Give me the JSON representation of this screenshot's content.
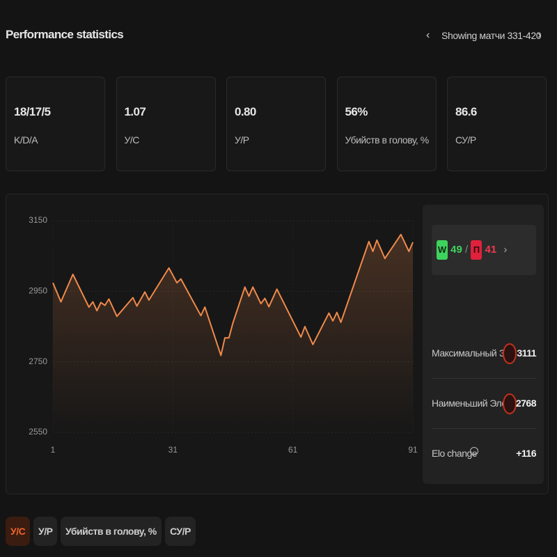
{
  "header": {
    "title": "Performance statistics",
    "range": "Showing матчи 331-420"
  },
  "stats": [
    {
      "value": "18/17/5",
      "label": "K/D/A"
    },
    {
      "value": "1.07",
      "label": "У/С"
    },
    {
      "value": "0.80",
      "label": "У/Р"
    },
    {
      "value": "56%",
      "label": "Убийств в голову, %"
    },
    {
      "value": "86.6",
      "label": "СУ/Р"
    }
  ],
  "chart_data": {
    "type": "line",
    "color": "#f08a4b",
    "grid": true,
    "x": [
      1,
      3,
      6,
      10,
      11,
      12,
      13,
      14,
      15,
      17,
      21,
      22,
      24,
      25,
      30,
      32,
      33,
      38,
      39,
      43,
      44,
      45,
      46,
      49,
      50,
      51,
      53,
      54,
      55,
      57,
      63,
      64,
      66,
      70,
      71,
      72,
      73,
      80,
      81,
      82,
      84,
      88,
      90,
      91
    ],
    "values": [
      2974,
      2920,
      2998,
      2905,
      2920,
      2895,
      2918,
      2910,
      2928,
      2879,
      2932,
      2908,
      2948,
      2925,
      3016,
      2974,
      2985,
      2881,
      2905,
      2768,
      2818,
      2818,
      2860,
      2962,
      2936,
      2962,
      2915,
      2930,
      2906,
      2956,
      2820,
      2850,
      2799,
      2888,
      2866,
      2890,
      2862,
      3091,
      3063,
      3095,
      3043,
      3111,
      3063,
      3089
    ],
    "xlim": [
      1,
      91
    ],
    "xticks": [
      1,
      31,
      61,
      91
    ],
    "ylim": [
      2550,
      3150
    ],
    "yticks": [
      2550,
      2750,
      2950,
      3150
    ]
  },
  "summary": {
    "wins_badge": "W",
    "wins": "49",
    "separator": "/",
    "losses_badge": "П",
    "losses": "41",
    "rows": [
      {
        "label": "Максимальный Эло",
        "value": "3111"
      },
      {
        "label": "Наименьший Эло",
        "value": "2768"
      },
      {
        "label": "Elo change",
        "value": "+116"
      }
    ]
  },
  "tabs": {
    "items": [
      "У/С",
      "У/Р",
      "Убийств в голову, %",
      "СУ/Р"
    ],
    "active": 0
  }
}
